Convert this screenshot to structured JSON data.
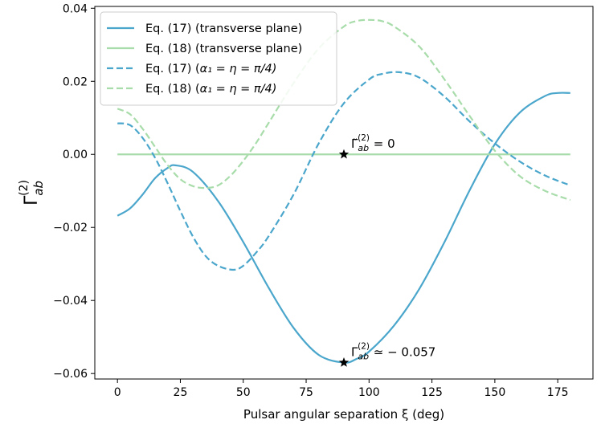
{
  "chart_data": {
    "type": "line",
    "title": "",
    "xlabel": "Pulsar angular separation ξ (deg)",
    "ylabel": "Γ",
    "ylabel_sub": "ab",
    "ylabel_sup": "(2)",
    "xlim": [
      -9,
      189
    ],
    "ylim": [
      -0.0615,
      0.0405
    ],
    "xticks": [
      0,
      25,
      50,
      75,
      100,
      125,
      150,
      175
    ],
    "yticks": [
      -0.06,
      -0.04,
      -0.02,
      0.0,
      0.02,
      0.04
    ],
    "ytick_labels": [
      "−0.06",
      "−0.04",
      "−0.02",
      "0.00",
      "0.02",
      "0.04"
    ],
    "legend_position": "top-left",
    "series": [
      {
        "name": "Eq. (17) (transverse plane)",
        "legend_main": "Eq. (17) (transverse plane)",
        "legend_math": "",
        "color": "#4ba6cc",
        "dash": "solid",
        "x": [
          0,
          5,
          10,
          15,
          20,
          23,
          30,
          40,
          50,
          60,
          70,
          80,
          90,
          95,
          100,
          110,
          120,
          130,
          140,
          150,
          160,
          170,
          175,
          180
        ],
        "y": [
          -0.0168,
          -0.0148,
          -0.011,
          -0.0065,
          -0.0037,
          -0.003,
          -0.0048,
          -0.0128,
          -0.024,
          -0.0364,
          -0.0475,
          -0.0549,
          -0.057,
          -0.056,
          -0.054,
          -0.0468,
          -0.0368,
          -0.024,
          -0.0098,
          0.0028,
          0.0115,
          0.016,
          0.0168,
          0.0168
        ]
      },
      {
        "name": "Eq. (18) (transverse plane)",
        "legend_main": "Eq. (18) (transverse plane)",
        "legend_math": "",
        "color": "#a8dcaa",
        "dash": "solid",
        "x": [
          0,
          180
        ],
        "y": [
          0.0,
          0.0
        ]
      },
      {
        "name": "Eq. (17) (α1 = η = π/4)",
        "legend_main": "Eq. (17) (",
        "legend_math": "α₁ = η = π/4)",
        "color": "#4ba6cc",
        "dash": "dashed",
        "x": [
          0,
          5,
          10,
          15,
          20,
          25,
          30,
          35,
          40,
          46,
          50,
          55,
          60,
          70,
          80,
          90,
          100,
          105,
          112,
          120,
          130,
          140,
          150,
          160,
          170,
          180
        ],
        "y": [
          0.0085,
          0.008,
          0.0045,
          -0.001,
          -0.008,
          -0.0155,
          -0.0225,
          -0.0278,
          -0.0305,
          -0.0316,
          -0.0305,
          -0.027,
          -0.0225,
          -0.011,
          0.003,
          0.014,
          0.0205,
          0.022,
          0.0225,
          0.021,
          0.0158,
          0.009,
          0.003,
          -0.002,
          -0.0058,
          -0.0085
        ]
      },
      {
        "name": "Eq. (18) (α1 = η = π/4)",
        "legend_main": "Eq. (18) (",
        "legend_math": "α₁ = η = π/4)",
        "color": "#a8dcaa",
        "dash": "dashed",
        "x": [
          0,
          5,
          10,
          15,
          20,
          25,
          30,
          35,
          40,
          45,
          50,
          55,
          60,
          70,
          80,
          90,
          95,
          100,
          105,
          110,
          120,
          130,
          140,
          150,
          160,
          170,
          180
        ],
        "y": [
          0.0125,
          0.011,
          0.007,
          0.002,
          -0.003,
          -0.0068,
          -0.0087,
          -0.0092,
          -0.0085,
          -0.0058,
          -0.0018,
          0.003,
          0.0085,
          0.0195,
          0.029,
          0.035,
          0.0365,
          0.0368,
          0.0365,
          0.035,
          0.0295,
          0.0205,
          0.0105,
          0.001,
          -0.006,
          -0.01,
          -0.0125
        ]
      }
    ],
    "annotations": [
      {
        "x": 90,
        "y": 0.0,
        "marker": "star",
        "text_sym": "Γ̃",
        "text_sub": "ab",
        "text_sup": "(2)",
        "text_rest": " = 0"
      },
      {
        "x": 90,
        "y": -0.057,
        "marker": "star",
        "text_sym": "Γ",
        "text_sub": "ab",
        "text_sup": "(2)",
        "text_rest": " ≃ − 0.057"
      }
    ]
  }
}
